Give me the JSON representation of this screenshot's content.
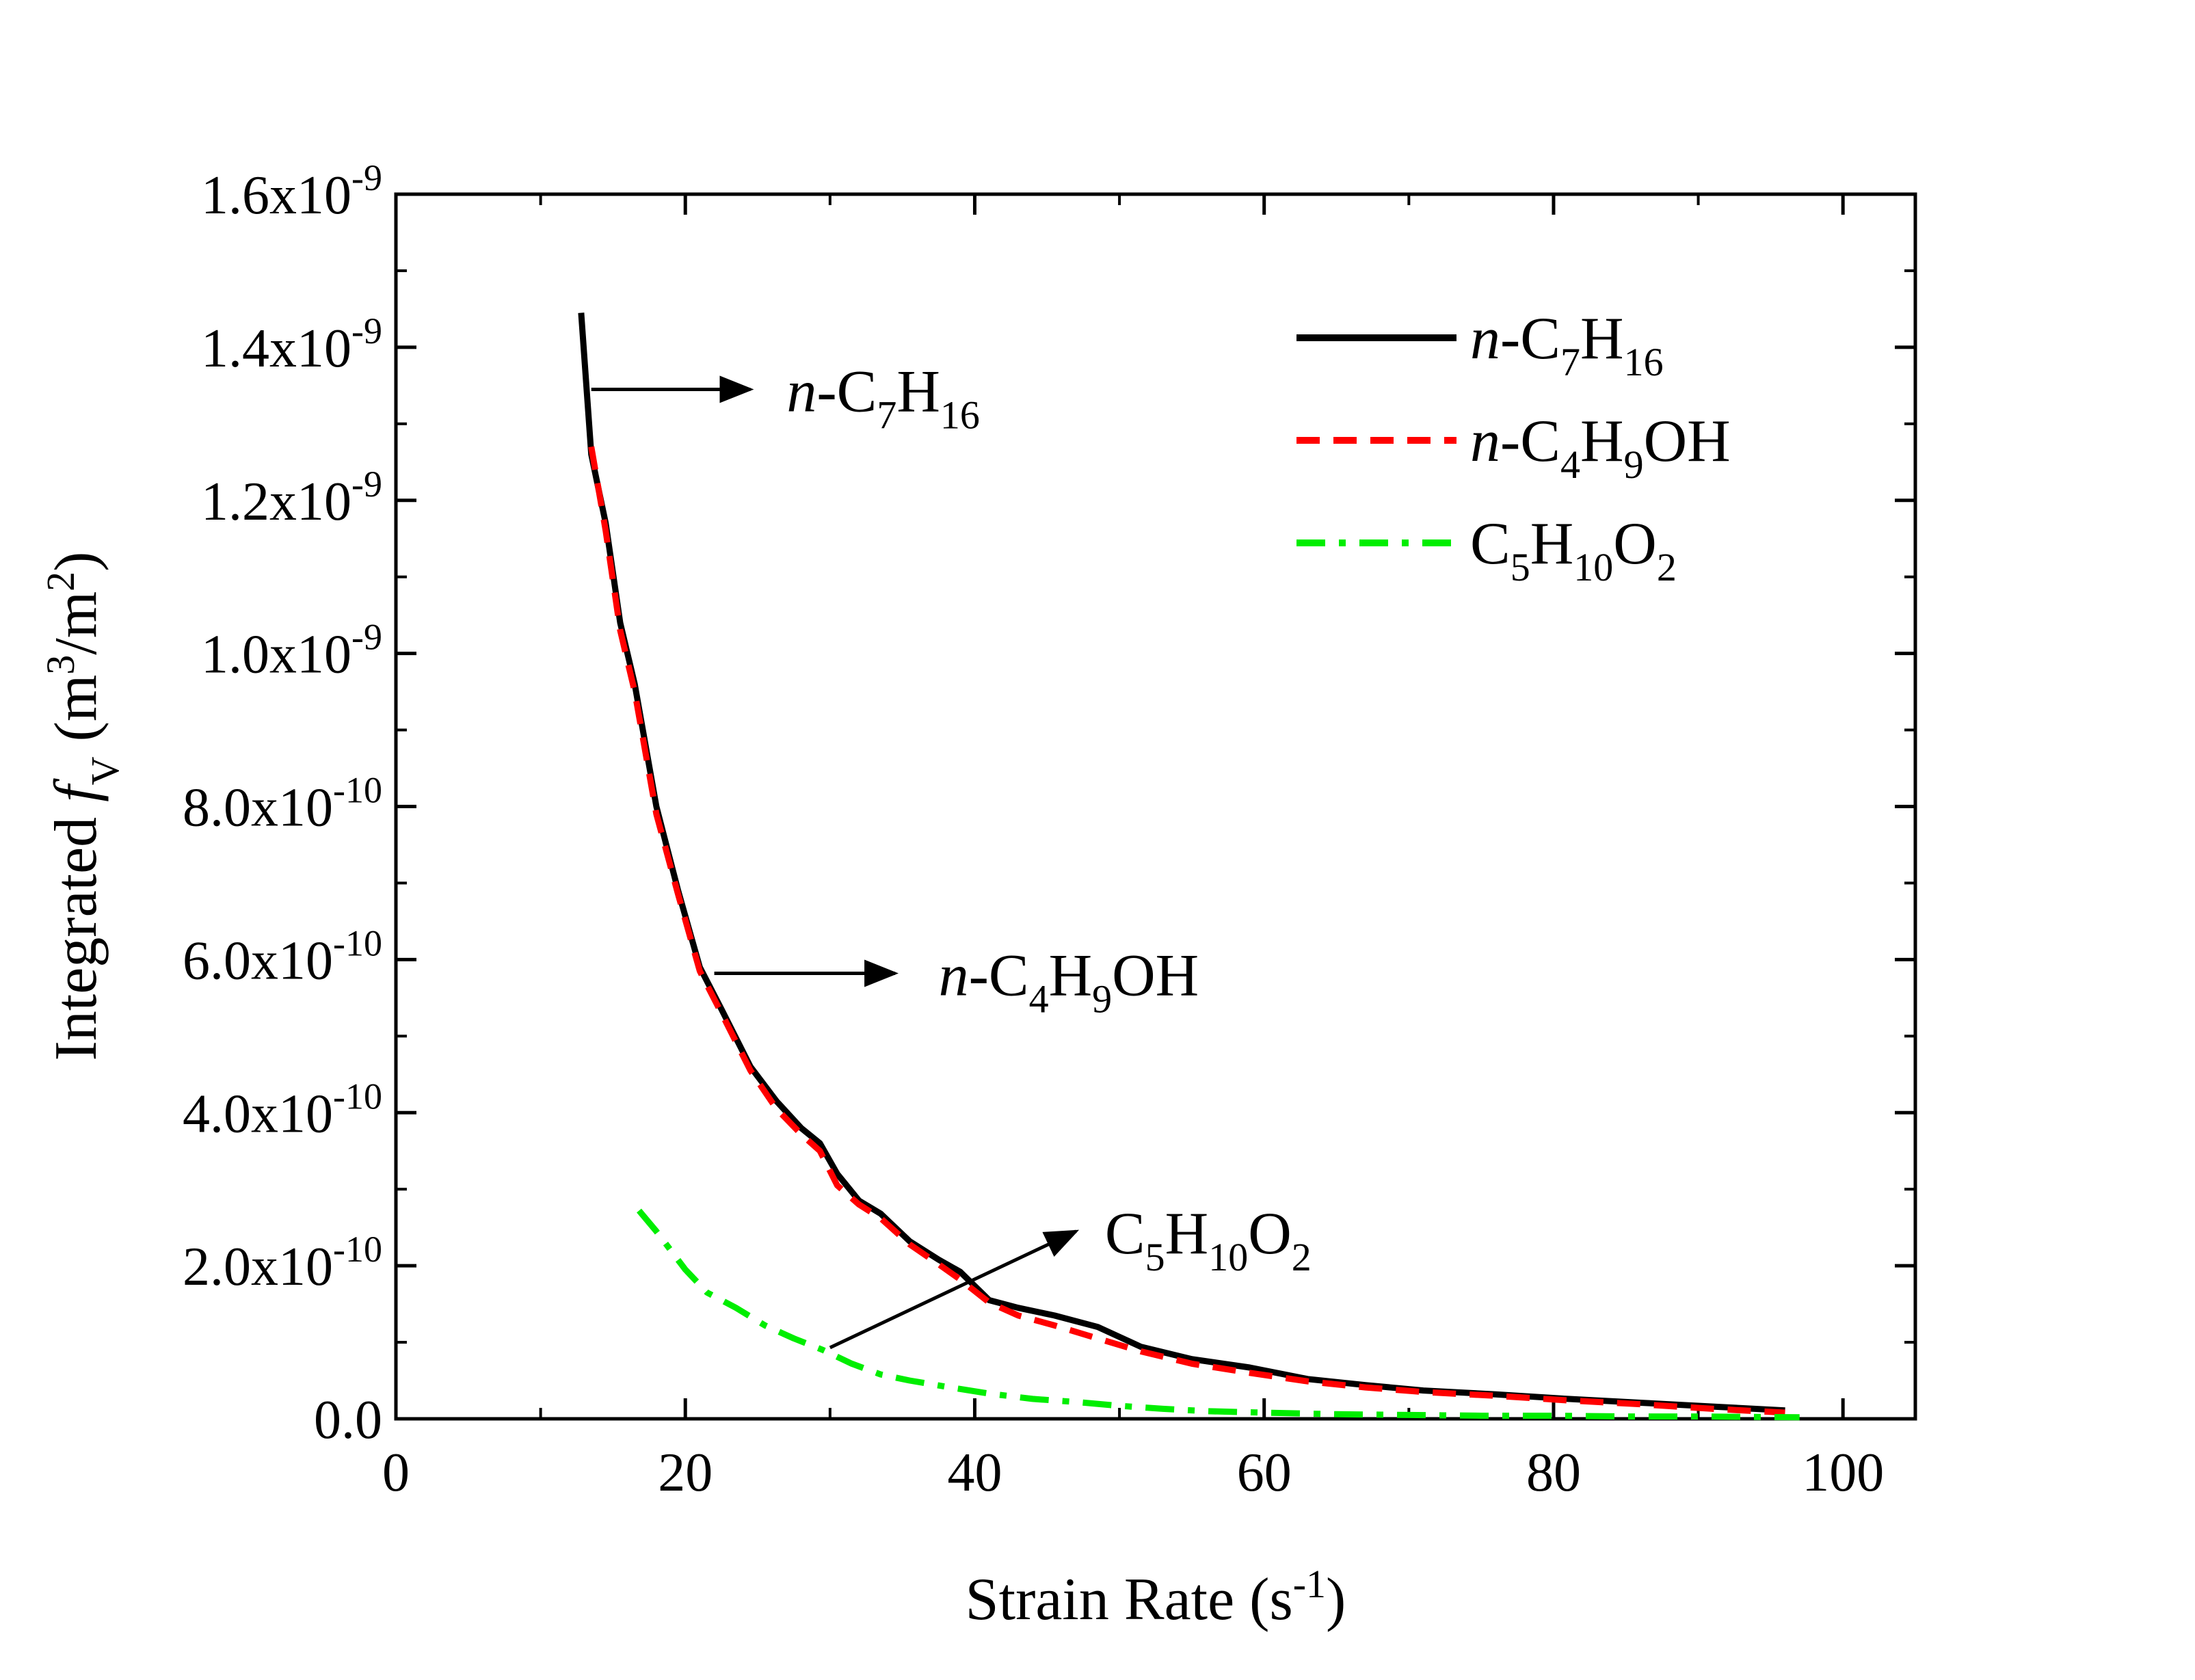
{
  "chart_data": {
    "type": "line",
    "xlabel": {
      "main": "Strain Rate (s",
      "sup": "-1",
      "close": ")"
    },
    "ylabel": {
      "pre": "Integrated ",
      "f": "f",
      "sub": "V",
      "mid": " (m",
      "sup1": "3",
      "mid2": "/m",
      "sup2": "2",
      "close": ")"
    },
    "xlim": [
      0,
      105
    ],
    "ylim": [
      0,
      1.6e-09
    ],
    "x_ticks": [
      0,
      20,
      40,
      60,
      80,
      100
    ],
    "x_tick_labels": [
      "0",
      "20",
      "40",
      "60",
      "80",
      "100"
    ],
    "y_ticks": [
      {
        "value": 0,
        "base": "0.0",
        "exp": ""
      },
      {
        "value": 2e-10,
        "base": "2.0x10",
        "exp": "-10"
      },
      {
        "value": 4e-10,
        "base": "4.0x10",
        "exp": "-10"
      },
      {
        "value": 6e-10,
        "base": "6.0x10",
        "exp": "-10"
      },
      {
        "value": 8e-10,
        "base": "8.0x10",
        "exp": "-10"
      },
      {
        "value": 1e-09,
        "base": "1.0x10",
        "exp": "-9"
      },
      {
        "value": 1.2e-09,
        "base": "1.2x10",
        "exp": "-9"
      },
      {
        "value": 1.4e-09,
        "base": "1.4x10",
        "exp": "-9"
      },
      {
        "value": 1.6e-09,
        "base": "1.6x10",
        "exp": "-9"
      }
    ],
    "legend_position": "top-right",
    "series": [
      {
        "key": "heptane",
        "label": [
          {
            "t": "n",
            "i": true
          },
          {
            "t": "-C"
          },
          {
            "t": "7",
            "sub": true
          },
          {
            "t": "H"
          },
          {
            "t": "16",
            "sub": true
          }
        ],
        "color": "#000000",
        "dash": "solid",
        "x": [
          12.8,
          13.5,
          14.5,
          15.5,
          16.5,
          18,
          19.5,
          21,
          22.5,
          24.5,
          26.3,
          28,
          29.3,
          30.5,
          32,
          33.5,
          35.5,
          37.5,
          39,
          41,
          43,
          45.5,
          48.5,
          51.5,
          55,
          59,
          63,
          67,
          71,
          76,
          81,
          86,
          91,
          96
        ],
        "y": [
          1.445e-09,
          1.26e-09,
          1.17e-09,
          1.04e-09,
          9.6e-10,
          8e-10,
          6.9e-10,
          5.9e-10,
          5.35e-10,
          4.6e-10,
          4.15e-10,
          3.8e-10,
          3.6e-10,
          3.2e-10,
          2.85e-10,
          2.68e-10,
          2.32e-10,
          2.08e-10,
          1.92e-10,
          1.55e-10,
          1.45e-10,
          1.35e-10,
          1.2e-10,
          9.4e-11,
          7.8e-11,
          6.7e-11,
          5.2e-11,
          4.4e-11,
          3.7e-11,
          3.2e-11,
          2.6e-11,
          2.1e-11,
          1.6e-11,
          1.1e-11
        ]
      },
      {
        "key": "butanol",
        "label": [
          {
            "t": "n",
            "i": true
          },
          {
            "t": "-C"
          },
          {
            "t": "4",
            "sub": true
          },
          {
            "t": "H"
          },
          {
            "t": "9",
            "sub": true
          },
          {
            "t": "OH"
          }
        ],
        "color": "#ff0000",
        "dash": "dashed",
        "x": [
          13.5,
          14.5,
          15.5,
          16.5,
          18,
          19.5,
          21,
          22.5,
          24.5,
          26.3,
          28,
          29.3,
          30.5,
          32,
          33.5,
          35.5,
          37.5,
          39,
          41,
          43,
          45.5,
          48.5,
          51.5,
          55,
          59,
          63,
          67,
          71,
          76,
          81,
          86,
          91,
          96
        ],
        "y": [
          1.27e-09,
          1.16e-09,
          1.03e-09,
          9.5e-10,
          7.9e-10,
          6.85e-10,
          5.85e-10,
          5.3e-10,
          4.55e-10,
          4.05e-10,
          3.72e-10,
          3.5e-10,
          3.05e-10,
          2.8e-10,
          2.62e-10,
          2.28e-10,
          2.02e-10,
          1.82e-10,
          1.52e-10,
          1.35e-10,
          1.22e-10,
          1.05e-10,
          8.8e-11,
          7.2e-11,
          6e-11,
          4.9e-11,
          4.1e-11,
          3.5e-11,
          3e-11,
          2.4e-11,
          1.9e-11,
          1.3e-11,
          8e-12
        ]
      },
      {
        "key": "c5",
        "label": [
          {
            "t": "C"
          },
          {
            "t": "5",
            "sub": true
          },
          {
            "t": "H"
          },
          {
            "t": "10",
            "sub": true
          },
          {
            "t": "O"
          },
          {
            "t": "2",
            "sub": true
          }
        ],
        "color": "#00ee00",
        "dash": "dashdot",
        "x": [
          16.8,
          18,
          20,
          21.5,
          23.5,
          25.5,
          27.5,
          29.5,
          31.5,
          33.5,
          35.5,
          38,
          41,
          44,
          47,
          50,
          53,
          56,
          60,
          65,
          70,
          75,
          80,
          85,
          90,
          97
        ],
        "y": [
          2.72e-10,
          2.45e-10,
          1.95e-10,
          1.65e-10,
          1.45e-10,
          1.22e-10,
          1.05e-10,
          9e-11,
          7.2e-11,
          5.8e-11,
          5e-11,
          4.2e-11,
          3.3e-11,
          2.6e-11,
          2.2e-11,
          1.7e-11,
          1.3e-11,
          1e-11,
          8e-12,
          6e-12,
          5e-12,
          4e-12,
          4e-12,
          3e-12,
          3e-12,
          2e-12
        ]
      }
    ],
    "annotations": [
      {
        "key": "heptane",
        "label": [
          {
            "t": "n",
            "i": true
          },
          {
            "t": "-C"
          },
          {
            "t": "7",
            "sub": true
          },
          {
            "t": "H"
          },
          {
            "t": "16",
            "sub": true
          }
        ],
        "from": [
          13.5,
          1.345e-09
        ],
        "to": [
          24.5,
          1.345e-09
        ],
        "text_at": [
          27,
          1.345e-09
        ]
      },
      {
        "key": "butanol",
        "label": [
          {
            "t": "n",
            "i": true
          },
          {
            "t": "-C"
          },
          {
            "t": "4",
            "sub": true
          },
          {
            "t": "H"
          },
          {
            "t": "9",
            "sub": true
          },
          {
            "t": "OH"
          }
        ],
        "from": [
          22,
          5.82e-10
        ],
        "to": [
          34.5,
          5.82e-10
        ],
        "text_at": [
          37.5,
          5.82e-10
        ]
      },
      {
        "key": "c5",
        "label": [
          {
            "t": "C"
          },
          {
            "t": "5",
            "sub": true
          },
          {
            "t": "H"
          },
          {
            "t": "10",
            "sub": true
          },
          {
            "t": "O"
          },
          {
            "t": "2",
            "sub": true
          }
        ],
        "from": [
          30,
          9.3e-11
        ],
        "to": [
          47,
          2.45e-10
        ],
        "text_at": [
          49,
          2.45e-10
        ]
      }
    ]
  }
}
